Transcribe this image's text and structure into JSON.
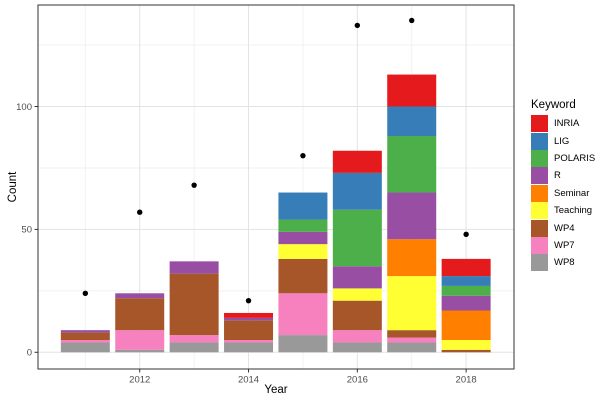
{
  "chart_data": {
    "type": "bar",
    "subtype": "stacked-bar-with-point-overlay",
    "title": "",
    "xlabel": "Year",
    "ylabel": "Count",
    "legend_title": "Keyword",
    "legend_position": "right",
    "grid": true,
    "years": [
      2011,
      2012,
      2013,
      2014,
      2015,
      2016,
      2017,
      2018
    ],
    "x_major_breaks": [
      2012,
      2014,
      2016,
      2018
    ],
    "x_minor_breaks": [
      2011,
      2013,
      2015,
      2017
    ],
    "x_tick_labels": [
      "2012",
      "2014",
      "2016",
      "2018"
    ],
    "y_major_breaks": [
      0,
      50,
      100
    ],
    "y_minor_breaks": [
      25,
      75,
      125
    ],
    "y_tick_labels": [
      "0",
      "50",
      "100"
    ],
    "xlim": [
      2010.13,
      2018.88
    ],
    "ylim": [
      -6.8,
      141.3
    ],
    "stack_note": "bars stacked bottom-to-top in reverse series order (WP8 bottom, INRIA top)",
    "series": [
      {
        "name": "INRIA",
        "color": "#E41A1C",
        "values": [
          0,
          0,
          0,
          2,
          0,
          9,
          13,
          7
        ]
      },
      {
        "name": "LIG",
        "color": "#377EB8",
        "values": [
          0,
          0,
          0,
          0,
          11,
          15,
          12,
          4
        ]
      },
      {
        "name": "POLARIS",
        "color": "#4DAF4A",
        "values": [
          0,
          0,
          0,
          0,
          5,
          23,
          23,
          4
        ]
      },
      {
        "name": "R",
        "color": "#984EA3",
        "values": [
          1,
          2,
          5,
          1,
          5,
          9,
          19,
          6
        ]
      },
      {
        "name": "Seminar",
        "color": "#FF7F00",
        "values": [
          0,
          0,
          0,
          0,
          0,
          0,
          15,
          12
        ]
      },
      {
        "name": "Teaching",
        "color": "#FFFF33",
        "values": [
          0,
          0,
          0,
          0,
          6,
          5,
          22,
          4
        ]
      },
      {
        "name": "WP4",
        "color": "#A65628",
        "values": [
          3,
          13,
          25,
          8,
          14,
          12,
          3,
          1
        ]
      },
      {
        "name": "WP7",
        "color": "#F781BF",
        "values": [
          1,
          8,
          3,
          1,
          17,
          5,
          2,
          0
        ]
      },
      {
        "name": "WP8",
        "color": "#999999",
        "values": [
          4,
          1,
          4,
          4,
          7,
          4,
          4,
          0
        ]
      }
    ],
    "bar_totals": [
      9,
      24,
      37,
      16,
      65,
      82,
      113,
      38
    ],
    "points": {
      "label": "total-dots",
      "color": "#000000",
      "values": [
        24,
        57,
        68,
        21,
        80,
        133,
        135,
        48
      ]
    },
    "style": {
      "background": "#FFFFFF",
      "panel_border": "#333333",
      "grid_major": "#E3E3E3",
      "grid_minor": "#F1F1F1",
      "axis_text": "#4D4D4D",
      "tick_mark": "#333333"
    }
  }
}
